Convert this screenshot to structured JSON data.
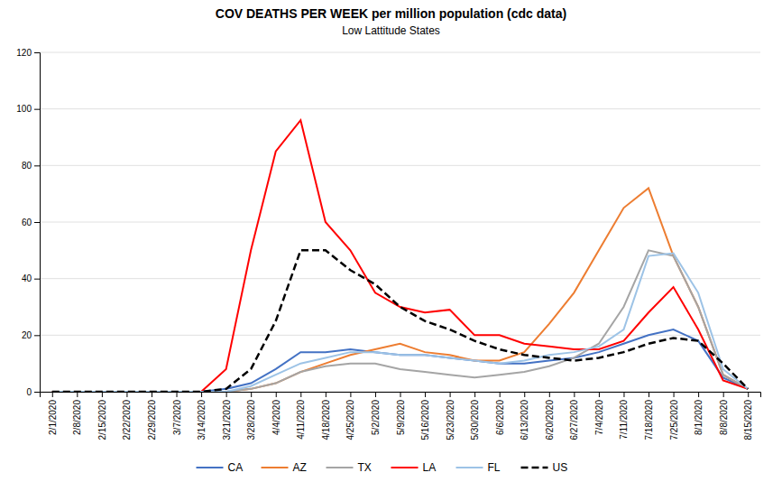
{
  "chart_data": {
    "type": "line",
    "title": "COV DEATHS PER WEEK per million population (cdc data)",
    "subtitle": "Low Lattitude States",
    "categories": [
      "2/1/2020",
      "2/8/2020",
      "2/15/2020",
      "2/22/2020",
      "2/29/2020",
      "3/7/2020",
      "3/14/2020",
      "3/21/2020",
      "3/28/2020",
      "4/4/2020",
      "4/11/2020",
      "4/18/2020",
      "4/25/2020",
      "5/2/2020",
      "5/9/2020",
      "5/16/2020",
      "5/23/2020",
      "5/30/2020",
      "6/6/2020",
      "6/13/2020",
      "6/20/2020",
      "6/27/2020",
      "7/4/2020",
      "7/11/2020",
      "7/18/2020",
      "7/25/2020",
      "8/1/2020",
      "8/8/2020",
      "8/15/2020"
    ],
    "series": [
      {
        "name": "CA",
        "color": "#4472C4",
        "line_style": "solid",
        "values": [
          0,
          0,
          0,
          0,
          0,
          0,
          0,
          1,
          3,
          8,
          14,
          14,
          15,
          14,
          13,
          13,
          12,
          11,
          10,
          10,
          11,
          12,
          14,
          17,
          20,
          22,
          18,
          5,
          1
        ]
      },
      {
        "name": "AZ",
        "color": "#ED7D31",
        "line_style": "solid",
        "values": [
          0,
          0,
          0,
          0,
          0,
          0,
          0,
          0,
          1,
          3,
          7,
          10,
          13,
          15,
          17,
          14,
          13,
          11,
          11,
          14,
          24,
          35,
          50,
          65,
          72,
          48,
          30,
          6,
          1
        ]
      },
      {
        "name": "TX",
        "color": "#A5A5A5",
        "line_style": "solid",
        "values": [
          0,
          0,
          0,
          0,
          0,
          0,
          0,
          0,
          1,
          3,
          7,
          9,
          10,
          10,
          8,
          7,
          6,
          5,
          6,
          7,
          9,
          12,
          17,
          30,
          50,
          48,
          30,
          6,
          1
        ]
      },
      {
        "name": "LA",
        "color": "#FF0000",
        "line_style": "solid",
        "values": [
          0,
          0,
          0,
          0,
          0,
          0,
          0,
          8,
          50,
          85,
          96,
          60,
          50,
          35,
          30,
          28,
          29,
          20,
          20,
          17,
          16,
          15,
          15,
          18,
          28,
          37,
          22,
          4,
          1
        ]
      },
      {
        "name": "FL",
        "color": "#9DC3E6",
        "line_style": "solid",
        "values": [
          0,
          0,
          0,
          0,
          0,
          0,
          0,
          0,
          2,
          6,
          10,
          12,
          14,
          14,
          13,
          13,
          12,
          11,
          10,
          11,
          13,
          14,
          16,
          22,
          48,
          49,
          35,
          8,
          1
        ]
      },
      {
        "name": "US",
        "color": "#000000",
        "line_style": "dashed",
        "values": [
          0,
          0,
          0,
          0,
          0,
          0,
          0,
          1,
          8,
          25,
          50,
          50,
          43,
          38,
          30,
          25,
          22,
          18,
          15,
          13,
          12,
          11,
          12,
          14,
          17,
          19,
          18,
          10,
          1
        ]
      }
    ],
    "ylim": [
      0,
      120
    ],
    "yticks": [
      0,
      20,
      40,
      60,
      80,
      100,
      120
    ],
    "grid": true,
    "legend": "bottom"
  }
}
